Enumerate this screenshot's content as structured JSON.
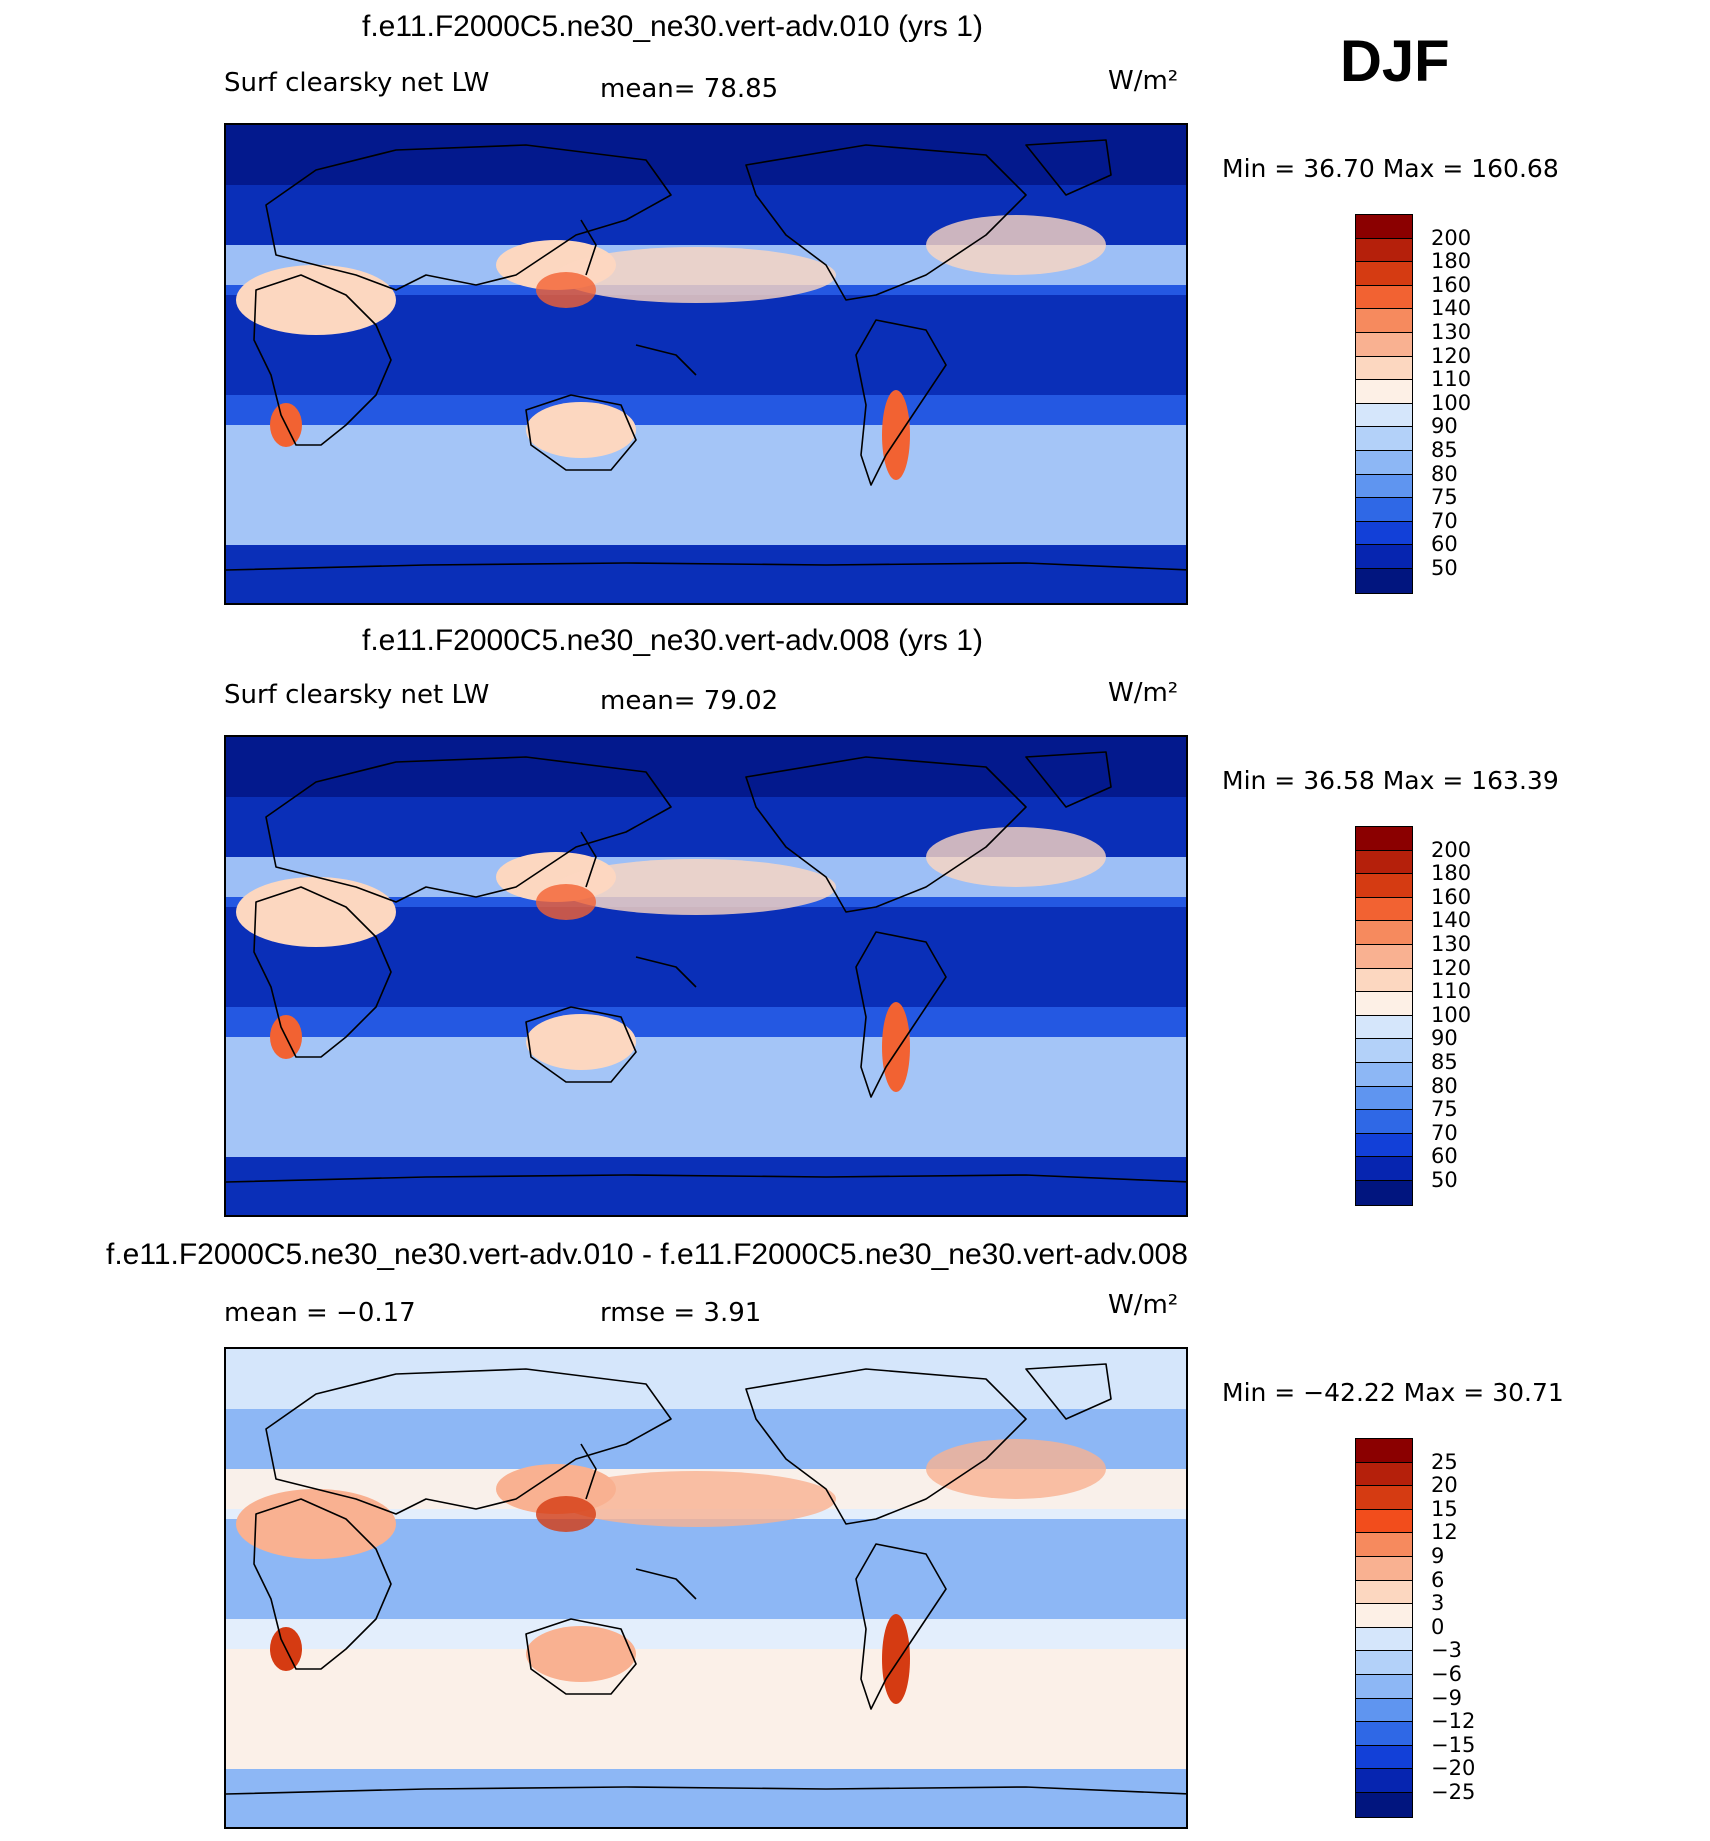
{
  "season": "DJF",
  "panels": [
    {
      "title": "f.e11.F2000C5.ne30_ne30.vert-adv.010 (yrs 1)",
      "left_label": "Surf clearsky net LW",
      "center_label": "mean=  78.85",
      "unit": "W/m²",
      "minmax": "Min =   36.70 Max =  160.68",
      "colors": [
        "#8b0000",
        "#b5200b",
        "#d53b12",
        "#f26232",
        "#f68a5e",
        "#f9b191",
        "#fcd7c0",
        "#fdf0e6",
        "#d5e6fb",
        "#b3d1f9",
        "#8db7f5",
        "#5f95f0",
        "#2f68e6",
        "#1240d8",
        "#0625b0",
        "#01157f"
      ],
      "levels": [
        "200",
        "180",
        "160",
        "140",
        "130",
        "120",
        "110",
        "100",
        "90",
        "85",
        "80",
        "75",
        "70",
        "60",
        "50"
      ],
      "map_colors": {
        "base": "#2458e2",
        "cool": "#0a2fb8",
        "pole": "#03198d",
        "mid": "#b3d1f9",
        "warm": "#fcd7c0",
        "hot": "#f26232"
      }
    },
    {
      "title": "f.e11.F2000C5.ne30_ne30.vert-adv.008 (yrs 1)",
      "left_label": "Surf clearsky net LW",
      "center_label": "mean=  79.02",
      "unit": "W/m²",
      "minmax": "Min =   36.58 Max =  163.39",
      "colors": [
        "#8b0000",
        "#b5200b",
        "#d53b12",
        "#f26232",
        "#f68a5e",
        "#f9b191",
        "#fcd7c0",
        "#fdf0e6",
        "#d5e6fb",
        "#b3d1f9",
        "#8db7f5",
        "#5f95f0",
        "#2f68e6",
        "#1240d8",
        "#0625b0",
        "#01157f"
      ],
      "levels": [
        "200",
        "180",
        "160",
        "140",
        "130",
        "120",
        "110",
        "100",
        "90",
        "85",
        "80",
        "75",
        "70",
        "60",
        "50"
      ],
      "map_colors": {
        "base": "#2458e2",
        "cool": "#0a2fb8",
        "pole": "#03198d",
        "mid": "#b3d1f9",
        "warm": "#fcd7c0",
        "hot": "#f26232"
      }
    },
    {
      "title": "f.e11.F2000C5.ne30_ne30.vert-adv.010 - f.e11.F2000C5.ne30_ne30.vert-adv.008",
      "left_label": "mean =   −0.17",
      "center_label": "rmse =    3.91",
      "unit": "W/m²",
      "minmax": "Min = −42.22 Max =   30.71",
      "colors": [
        "#8b0000",
        "#b5200b",
        "#d53b12",
        "#f24d1c",
        "#f68a5e",
        "#f9b191",
        "#fcd7c0",
        "#fdf0e6",
        "#d5e6fb",
        "#b3d1f9",
        "#8db7f5",
        "#5f95f0",
        "#2f68e6",
        "#1240d8",
        "#0625b0",
        "#01157f"
      ],
      "levels": [
        "25",
        "20",
        "15",
        "12",
        "9",
        "6",
        "3",
        "0",
        "−3",
        "−6",
        "−9",
        "−12",
        "−15",
        "−20",
        "−25"
      ],
      "map_colors": {
        "base": "#e3eefc",
        "cool": "#8db7f5",
        "pole": "#d5e6fb",
        "mid": "#fdf0e6",
        "warm": "#f9b191",
        "hot": "#d53b12"
      }
    }
  ]
}
